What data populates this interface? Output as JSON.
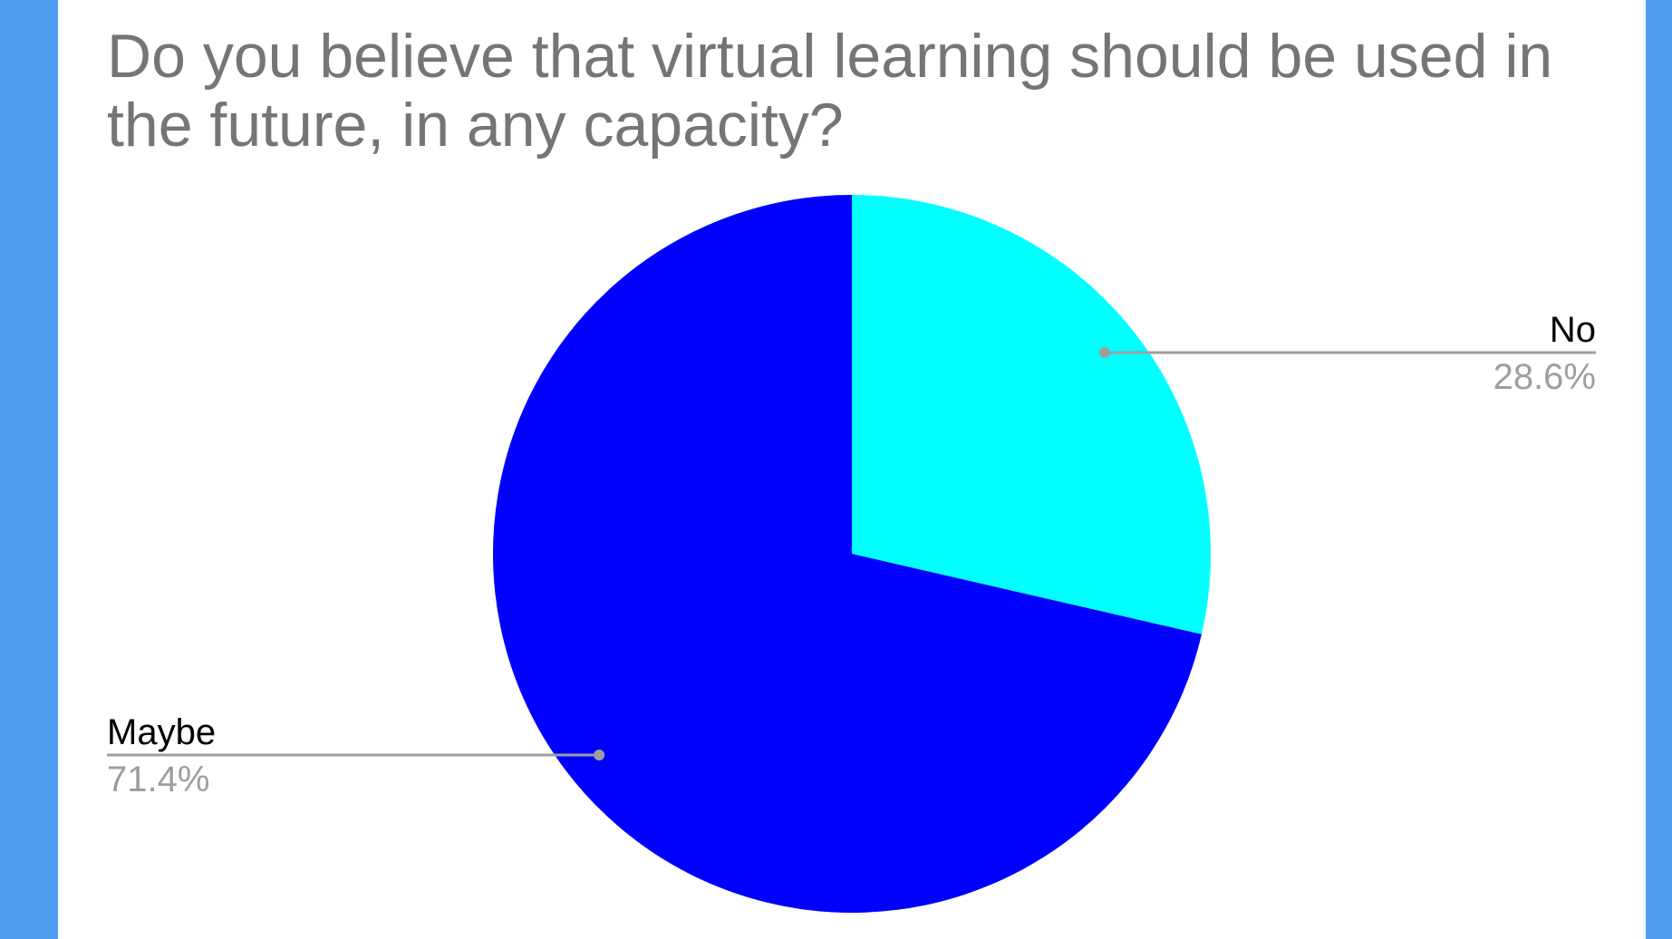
{
  "chart_data": {
    "type": "pie",
    "title": "Do you believe that virtual learning should be used in the future, in any capacity?",
    "slices": [
      {
        "label": "No",
        "value": 28.6,
        "display": "28.6%",
        "color": "#00ffff",
        "label_side": "right"
      },
      {
        "label": "Maybe",
        "value": 71.4,
        "display": "71.4%",
        "color": "#0000ff",
        "label_side": "left"
      }
    ],
    "start_angle_deg": 0,
    "direction": "clockwise",
    "legend": "none",
    "label_style": "leader-lines"
  },
  "colors": {
    "background": "#4f9cf0",
    "card": "#ffffff",
    "title_text": "#757575",
    "leader_line": "#9e9e9e"
  }
}
